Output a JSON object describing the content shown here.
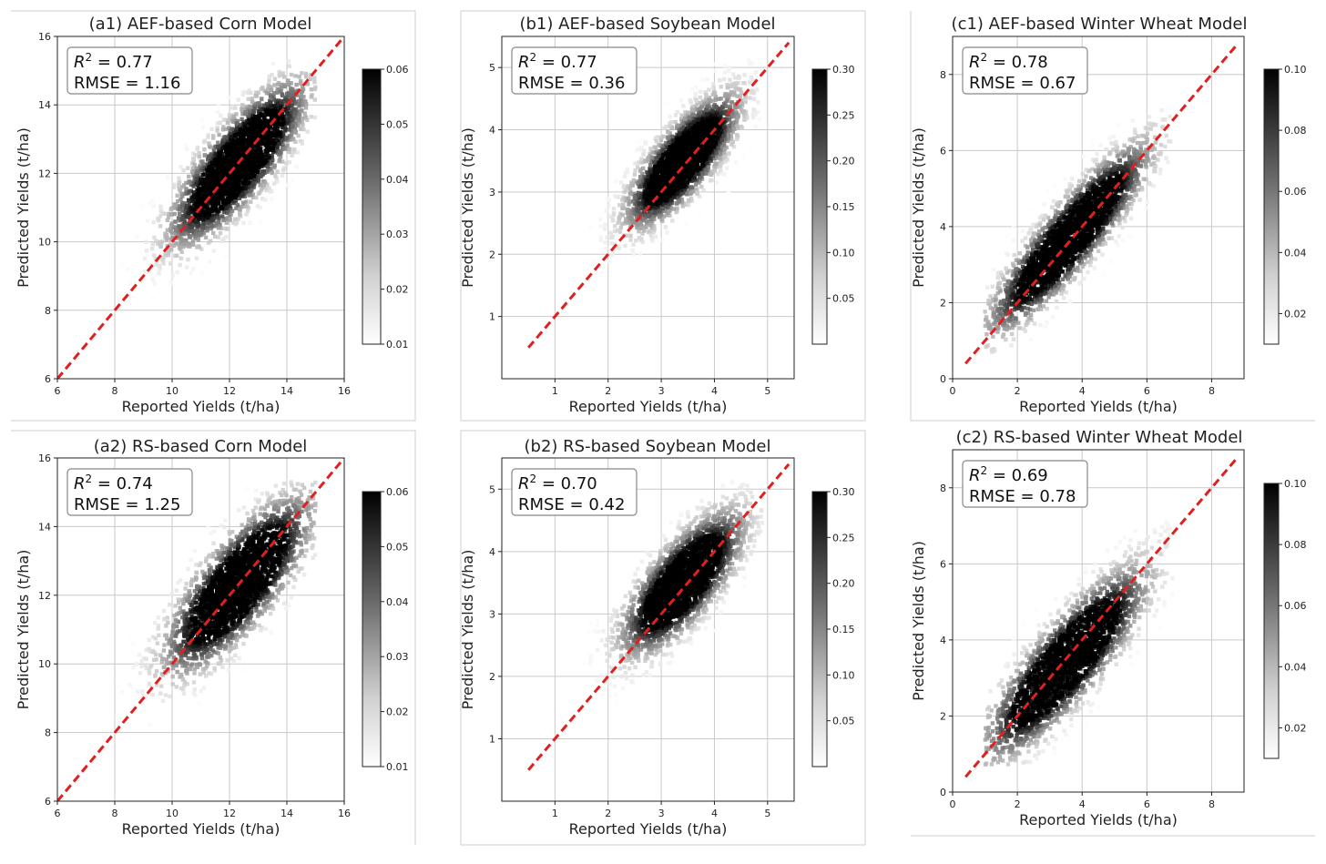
{
  "figure": {
    "dividers": true
  },
  "chart_data": [
    {
      "id": "a1",
      "type": "scatter",
      "title": "(a1) AEF-based Corn Model",
      "xlabel": "Reported Yields (t/ha)",
      "ylabel": "Predicted Yields (t/ha)",
      "xlim": [
        6,
        16
      ],
      "ylim": [
        6,
        16
      ],
      "xticks": [
        "6",
        "8",
        "10",
        "12",
        "14",
        "16"
      ],
      "yticks": [
        "6",
        "8",
        "10",
        "12",
        "14",
        "16"
      ],
      "stats": {
        "r2_label": "R",
        "r2_value": " = 0.77",
        "rmse": "RMSE = 1.16"
      },
      "reference_line": {
        "from": [
          6,
          6
        ],
        "to": [
          16,
          16
        ],
        "color": "#e02020",
        "style": "dashed"
      },
      "density": {
        "center": [
          12.3,
          12.3
        ],
        "spread_major": 1.7,
        "spread_minor": 0.55,
        "range": [
          8.0,
          15.0
        ]
      },
      "colorbar": {
        "min": 0.01,
        "max": 0.06,
        "ticks": [
          "0.01",
          "0.02",
          "0.03",
          "0.04",
          "0.05",
          "0.06"
        ],
        "tick_values": [
          0.01,
          0.02,
          0.03,
          0.04,
          0.05,
          0.06
        ]
      },
      "grid": true
    },
    {
      "id": "b1",
      "type": "scatter",
      "title": "(b1) AEF-based Soybean Model",
      "xlabel": "Reported Yields (t/ha)",
      "ylabel": "Predicted Yields (t/ha)",
      "xlim": [
        0.0,
        5.5
      ],
      "ylim": [
        0.0,
        5.5
      ],
      "xticks": [
        "1",
        "2",
        "3",
        "4",
        "5"
      ],
      "yticks": [
        "1",
        "2",
        "3",
        "4",
        "5"
      ],
      "stats": {
        "r2_label": "R",
        "r2_value": " = 0.77",
        "rmse": "RMSE = 0.36"
      },
      "reference_line": {
        "from": [
          0.5,
          0.5
        ],
        "to": [
          5.4,
          5.4
        ],
        "color": "#e02020",
        "style": "dashed"
      },
      "density": {
        "center": [
          3.4,
          3.5
        ],
        "spread_major": 0.75,
        "spread_minor": 0.26,
        "range": [
          1.5,
          4.9
        ]
      },
      "colorbar": {
        "min": 0.0,
        "max": 0.3,
        "ticks": [
          "0.05",
          "0.10",
          "0.15",
          "0.20",
          "0.25",
          "0.30"
        ],
        "tick_values": [
          0.05,
          0.1,
          0.15,
          0.2,
          0.25,
          0.3
        ]
      },
      "grid": true
    },
    {
      "id": "c1",
      "type": "scatter",
      "title": "(c1) AEF-based Winter Wheat Model",
      "xlabel": "Reported Yields (t/ha)",
      "ylabel": "Predicted Yields (t/ha)",
      "xlim": [
        0,
        9
      ],
      "ylim": [
        0,
        9
      ],
      "xticks": [
        "0",
        "2",
        "4",
        "6",
        "8"
      ],
      "yticks": [
        "0",
        "2",
        "4",
        "6",
        "8"
      ],
      "stats": {
        "r2_label": "R",
        "r2_value": " = 0.78",
        "rmse": "RMSE = 0.67"
      },
      "reference_line": {
        "from": [
          0.4,
          0.4
        ],
        "to": [
          8.8,
          8.8
        ],
        "color": "#e02020",
        "style": "dashed"
      },
      "density": {
        "center": [
          3.6,
          3.7
        ],
        "spread_major": 1.8,
        "spread_minor": 0.42,
        "range": [
          1.0,
          6.8
        ]
      },
      "colorbar": {
        "min": 0.01,
        "max": 0.1,
        "ticks": [
          "0.02",
          "0.04",
          "0.06",
          "0.08",
          "0.10"
        ],
        "tick_values": [
          0.02,
          0.04,
          0.06,
          0.08,
          0.1
        ]
      },
      "grid": true
    },
    {
      "id": "a2",
      "type": "scatter",
      "title": "(a2) RS-based Corn Model",
      "xlabel": "Reported Yields (t/ha)",
      "ylabel": "Predicted Yields (t/ha)",
      "xlim": [
        6,
        16
      ],
      "ylim": [
        6,
        16
      ],
      "xticks": [
        "6",
        "8",
        "10",
        "12",
        "14",
        "16"
      ],
      "yticks": [
        "6",
        "8",
        "10",
        "12",
        "14",
        "16"
      ],
      "stats": {
        "r2_label": "R",
        "r2_value": " = 0.74",
        "rmse": "RMSE = 1.25"
      },
      "reference_line": {
        "from": [
          6,
          6
        ],
        "to": [
          16,
          16
        ],
        "color": "#e02020",
        "style": "dashed"
      },
      "density": {
        "center": [
          12.3,
          12.3
        ],
        "spread_major": 1.8,
        "spread_minor": 0.62,
        "range": [
          8.0,
          15.0
        ]
      },
      "colorbar": {
        "min": 0.01,
        "max": 0.06,
        "ticks": [
          "0.01",
          "0.02",
          "0.03",
          "0.04",
          "0.05",
          "0.06"
        ],
        "tick_values": [
          0.01,
          0.02,
          0.03,
          0.04,
          0.05,
          0.06
        ]
      },
      "grid": true
    },
    {
      "id": "b2",
      "type": "scatter",
      "title": "(b2) RS-based Soybean Model",
      "xlabel": "Reported Yields (t/ha)",
      "ylabel": "Predicted Yields (t/ha)",
      "xlim": [
        0.0,
        5.5
      ],
      "ylim": [
        0.0,
        5.5
      ],
      "xticks": [
        "1",
        "2",
        "3",
        "4",
        "5"
      ],
      "yticks": [
        "1",
        "2",
        "3",
        "4",
        "5"
      ],
      "stats": {
        "r2_label": "R",
        "r2_value": " = 0.70",
        "rmse": "RMSE = 0.42"
      },
      "reference_line": {
        "from": [
          0.5,
          0.5
        ],
        "to": [
          5.4,
          5.4
        ],
        "color": "#e02020",
        "style": "dashed"
      },
      "density": {
        "center": [
          3.4,
          3.5
        ],
        "spread_major": 0.8,
        "spread_minor": 0.3,
        "range": [
          1.5,
          4.9
        ]
      },
      "colorbar": {
        "min": 0.0,
        "max": 0.3,
        "ticks": [
          "0.05",
          "0.10",
          "0.15",
          "0.20",
          "0.25",
          "0.30"
        ],
        "tick_values": [
          0.05,
          0.1,
          0.15,
          0.2,
          0.25,
          0.3
        ]
      },
      "grid": true
    },
    {
      "id": "c2",
      "type": "scatter",
      "title": "(c2) RS-based Winter Wheat Model",
      "xlabel": "Reported Yields (t/ha)",
      "ylabel": "Predicted Yields (t/ha)",
      "xlim": [
        0,
        9
      ],
      "ylim": [
        0,
        9
      ],
      "xticks": [
        "0",
        "2",
        "4",
        "6",
        "8"
      ],
      "yticks": [
        "0",
        "2",
        "4",
        "6",
        "8"
      ],
      "stats": {
        "r2_label": "R",
        "r2_value": " = 0.69",
        "rmse": "RMSE = 0.78"
      },
      "reference_line": {
        "from": [
          0.4,
          0.4
        ],
        "to": [
          8.8,
          8.8
        ],
        "color": "#e02020",
        "style": "dashed"
      },
      "density": {
        "center": [
          3.5,
          3.4
        ],
        "spread_major": 1.8,
        "spread_minor": 0.5,
        "range": [
          1.0,
          6.8
        ]
      },
      "colorbar": {
        "min": 0.01,
        "max": 0.1,
        "ticks": [
          "0.02",
          "0.04",
          "0.06",
          "0.08",
          "0.10"
        ],
        "tick_values": [
          0.02,
          0.04,
          0.06,
          0.08,
          0.1
        ]
      },
      "grid": true
    }
  ]
}
